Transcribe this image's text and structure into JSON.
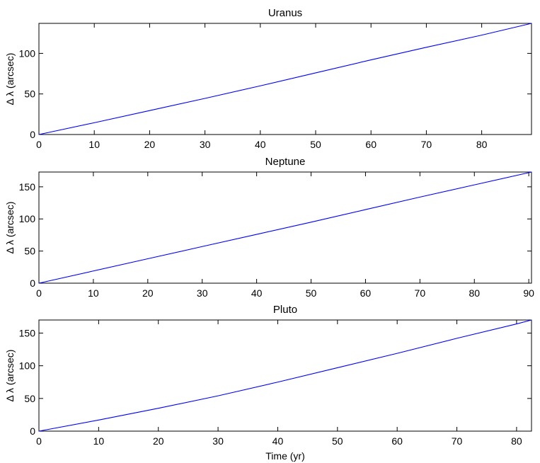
{
  "chart_data": [
    {
      "type": "line",
      "title": "Uranus",
      "xlabel": "",
      "ylabel": "Δ λ (arcsec)",
      "xlim": [
        0,
        89
      ],
      "ylim": [
        0,
        137
      ],
      "xticks": [
        0,
        10,
        20,
        30,
        40,
        50,
        60,
        70,
        80
      ],
      "yticks": [
        0,
        50,
        100
      ],
      "grid": false,
      "color": "#0000ff",
      "series": [
        {
          "x": [
            0,
            10,
            20,
            30,
            40,
            50,
            60,
            70,
            80,
            89
          ],
          "y": [
            0,
            14.5,
            29.5,
            44.5,
            60,
            76,
            92,
            107.5,
            122.5,
            137
          ]
        }
      ]
    },
    {
      "type": "line",
      "title": "Neptune",
      "xlabel": "",
      "ylabel": "Δ λ (arcsec)",
      "xlim": [
        0,
        90.5
      ],
      "ylim": [
        0,
        173
      ],
      "xticks": [
        0,
        10,
        20,
        30,
        40,
        50,
        60,
        70,
        80,
        90
      ],
      "yticks": [
        0,
        50,
        100,
        150
      ],
      "grid": false,
      "color": "#0000ff",
      "series": [
        {
          "x": [
            0,
            10,
            20,
            30,
            40,
            50,
            60,
            70,
            80,
            90.5
          ],
          "y": [
            0,
            19,
            38,
            57,
            76,
            95,
            114.5,
            134,
            153,
            173
          ]
        }
      ]
    },
    {
      "type": "line",
      "title": "Pluto",
      "xlabel": "Time (yr)",
      "ylabel": "Δ λ (arcsec)",
      "xlim": [
        0,
        82.5
      ],
      "ylim": [
        0,
        170
      ],
      "xticks": [
        0,
        10,
        20,
        30,
        40,
        50,
        60,
        70,
        80
      ],
      "yticks": [
        0,
        50,
        100,
        150
      ],
      "grid": false,
      "color": "#0000ff",
      "series": [
        {
          "x": [
            0,
            10,
            20,
            30,
            40,
            50,
            60,
            70,
            80,
            82.5
          ],
          "y": [
            0,
            17,
            35,
            54,
            75,
            97,
            119,
            142,
            164,
            170
          ]
        }
      ]
    }
  ]
}
